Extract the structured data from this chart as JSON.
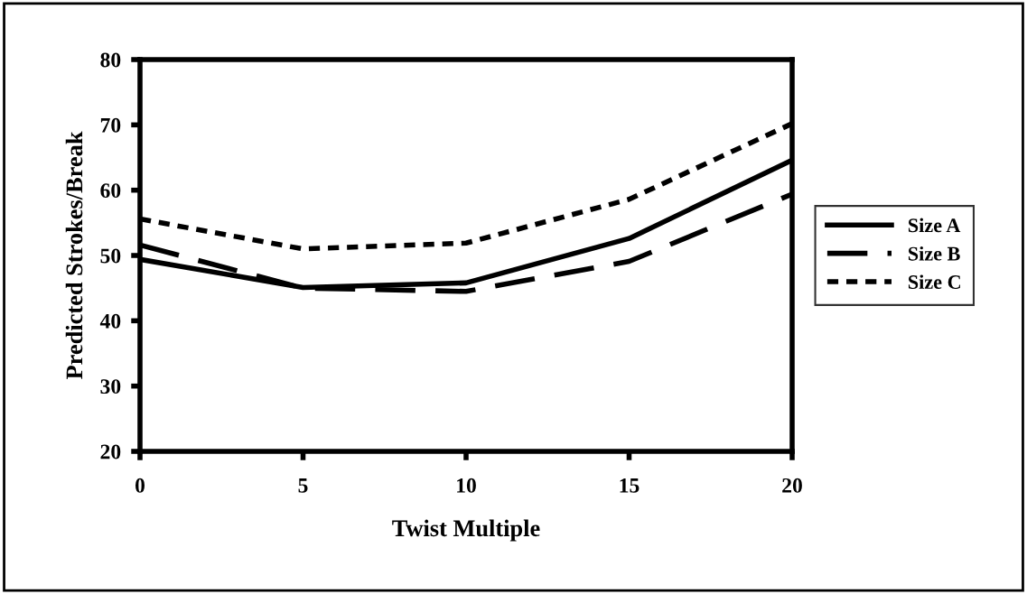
{
  "chart_data": {
    "type": "line",
    "xlabel": "Twist Multiple",
    "ylabel": "Predicted Strokes/Break",
    "x": [
      0,
      5,
      10,
      15,
      20
    ],
    "series": [
      {
        "name": "Size A",
        "color": "#000000",
        "line_style": "solid",
        "values": [
          49.4,
          45.1,
          45.8,
          52.6,
          64.6
        ]
      },
      {
        "name": "Size B",
        "color": "#000000",
        "line_style": "dashed",
        "values": [
          51.6,
          45.0,
          44.5,
          49.1,
          59.4
        ]
      },
      {
        "name": "Size C",
        "color": "#000000",
        "line_style": "dotted",
        "values": [
          55.6,
          51.0,
          51.9,
          58.6,
          70.2
        ]
      }
    ],
    "xlim": [
      0,
      20
    ],
    "xticks": [
      0,
      5,
      10,
      15,
      20
    ],
    "ylim": [
      20,
      80
    ],
    "yticks": [
      20,
      30,
      40,
      50,
      60,
      70,
      80
    ],
    "grid": false,
    "legend": "right",
    "marker": "none"
  }
}
